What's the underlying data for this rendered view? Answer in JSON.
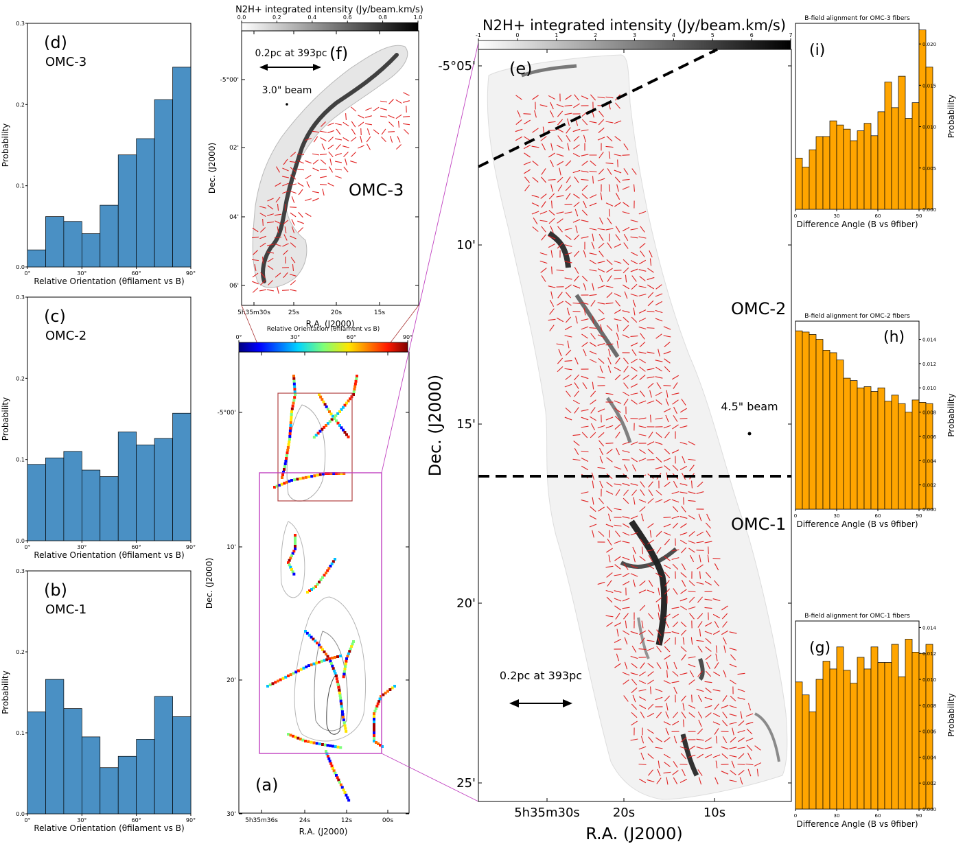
{
  "chart_data": [
    {
      "id": "d",
      "type": "bar",
      "panel_label": "(d)",
      "region": "OMC-3",
      "xlabel": "Relative Orientation (θfilament vs B)",
      "ylabel": "Probability",
      "xlim": [
        0,
        90
      ],
      "ylim": [
        0,
        0.3
      ],
      "xticks": [
        "0°",
        "30°",
        "60°",
        "90°"
      ],
      "yticks": [
        "0.0",
        "0.1",
        "0.2",
        "0.3"
      ],
      "bin_width": 10,
      "values": [
        0.021,
        0.062,
        0.056,
        0.041,
        0.076,
        0.138,
        0.158,
        0.206,
        0.246
      ],
      "color": "#4a90c4"
    },
    {
      "id": "c",
      "type": "bar",
      "panel_label": "(c)",
      "region": "OMC-2",
      "xlabel": "Relative Orientation (θfilament vs B)",
      "ylabel": "Probability",
      "xlim": [
        0,
        90
      ],
      "ylim": [
        0,
        0.3
      ],
      "xticks": [
        "0°",
        "30°",
        "60°",
        "90°"
      ],
      "yticks": [
        "0.0",
        "0.1",
        "0.2",
        "0.3"
      ],
      "bin_width": 10,
      "values": [
        0.094,
        0.102,
        0.11,
        0.087,
        0.079,
        0.134,
        0.118,
        0.126,
        0.157
      ],
      "color": "#4a90c4"
    },
    {
      "id": "b",
      "type": "bar",
      "panel_label": "(b)",
      "region": "OMC-1",
      "xlabel": "Relative Orientation (θfilament vs B)",
      "ylabel": "Probability",
      "xlim": [
        0,
        90
      ],
      "ylim": [
        0,
        0.3
      ],
      "xticks": [
        "0°",
        "30°",
        "60°",
        "90°"
      ],
      "yticks": [
        "0.0",
        "0.1",
        "0.2",
        "0.3"
      ],
      "bin_width": 10,
      "values": [
        0.126,
        0.166,
        0.13,
        0.095,
        0.057,
        0.071,
        0.092,
        0.145,
        0.12
      ],
      "color": "#4a90c4"
    },
    {
      "id": "i",
      "type": "bar",
      "panel_label": "(i)",
      "title": "B-field alignment for OMC-3 fibers",
      "xlabel": "Difference Angle (B vs θfiber)",
      "ylabel": "Probability",
      "xlim": [
        0,
        90
      ],
      "ylim": [
        0,
        0.0225
      ],
      "xticks": [
        "0",
        "30",
        "60",
        "90"
      ],
      "yticks": [
        "0.000",
        "0.005",
        "0.010",
        "0.015",
        "0.020"
      ],
      "ytick_values": [
        0,
        0.005,
        0.01,
        0.015,
        0.02
      ],
      "bin_width": 5,
      "values": [
        0.0062,
        0.0051,
        0.0072,
        0.0088,
        0.0088,
        0.0107,
        0.0102,
        0.0097,
        0.0083,
        0.0095,
        0.0104,
        0.0089,
        0.0118,
        0.0154,
        0.0123,
        0.0161,
        0.011,
        0.0129,
        0.0217,
        0.0172
      ],
      "color": "#ffa500"
    },
    {
      "id": "h",
      "type": "bar",
      "panel_label": "(h)",
      "title": "B-field alignment for OMC-2 fibers",
      "xlabel": "Difference Angle (B vs θfiber)",
      "ylabel": "Probability",
      "xlim": [
        0,
        90
      ],
      "ylim": [
        0,
        0.0155
      ],
      "xticks": [
        "0",
        "30",
        "60",
        "90"
      ],
      "yticks": [
        "0.000",
        "0.002",
        "0.004",
        "0.006",
        "0.008",
        "0.010",
        "0.012",
        "0.014"
      ],
      "ytick_values": [
        0,
        0.002,
        0.004,
        0.006,
        0.008,
        0.01,
        0.012,
        0.014
      ],
      "bin_width": 5,
      "values": [
        0.0147,
        0.0146,
        0.0144,
        0.014,
        0.0131,
        0.0129,
        0.0123,
        0.0108,
        0.0106,
        0.01,
        0.0101,
        0.0097,
        0.01,
        0.0089,
        0.0094,
        0.0087,
        0.008,
        0.009,
        0.0088,
        0.0087
      ],
      "color": "#ffa500"
    },
    {
      "id": "g",
      "type": "bar",
      "panel_label": "(g)",
      "title": "B-field alignment for OMC-1 fibers",
      "xlabel": "Difference Angle (B vs θfiber)",
      "ylabel": "Probability",
      "xlim": [
        0,
        90
      ],
      "ylim": [
        0,
        0.0145
      ],
      "xticks": [
        "0",
        "30",
        "60",
        "90"
      ],
      "yticks": [
        "0.000",
        "0.002",
        "0.004",
        "0.006",
        "0.008",
        "0.010",
        "0.012",
        "0.014"
      ],
      "ytick_values": [
        0,
        0.002,
        0.004,
        0.006,
        0.008,
        0.01,
        0.012,
        0.014
      ],
      "bin_width": 5,
      "values": [
        0.0098,
        0.0088,
        0.0075,
        0.01,
        0.0114,
        0.0108,
        0.0125,
        0.0107,
        0.0097,
        0.0117,
        0.0108,
        0.0125,
        0.0113,
        0.0113,
        0.0127,
        0.0102,
        0.0131,
        0.0121,
        0.012,
        0.0127
      ],
      "color": "#ffa500"
    },
    {
      "id": "a",
      "type": "map",
      "panel_label": "(a)",
      "colorbar_label": "Relative Orientation (θfilament vs B)",
      "colorbar_ticks": [
        "0°",
        "30°",
        "60°",
        "90°"
      ],
      "xlabel": "R.A. (J2000)",
      "ylabel": "Dec. (J2000)",
      "xticks": [
        "5h35m36s",
        "24s",
        "12s",
        "00s"
      ],
      "yticks": [
        "-5°00'",
        "10'",
        "20'",
        "30'"
      ]
    },
    {
      "id": "f",
      "type": "map",
      "panel_label": "(f)",
      "region": "OMC-3",
      "colorbar_label": "N2H+ integrated intensity (Jy/beam.km/s)",
      "colorbar_ticks": [
        "0.0",
        "0.2",
        "0.4",
        "0.6",
        "0.8",
        "1.0"
      ],
      "xlabel": "R.A. (J2000)",
      "ylabel": "Dec. (J2000)",
      "xticks": [
        "5h35m30s",
        "25s",
        "20s",
        "15s"
      ],
      "yticks": [
        "-5°00'",
        "02'",
        "04'",
        "06'"
      ],
      "scalebar": "0.2pc at 393pc",
      "beam": "3.0\" beam"
    },
    {
      "id": "e",
      "type": "map",
      "panel_label": "(e)",
      "colorbar_label": "N2H+ integrated intensity (Jy/beam.km/s)",
      "colorbar_ticks": [
        "-1",
        "0",
        "1",
        "2",
        "3",
        "4",
        "5",
        "6",
        "7"
      ],
      "xlabel": "R.A. (J2000)",
      "ylabel": "Dec. (J2000)",
      "xticks": [
        "5h35m30s",
        "20s",
        "10s"
      ],
      "yticks": [
        "-5°05'",
        "10'",
        "15'",
        "20'",
        "25'"
      ],
      "regions": [
        "OMC-2",
        "OMC-1"
      ],
      "scalebar": "0.2pc at 393pc",
      "beam": "4.5\" beam"
    }
  ]
}
